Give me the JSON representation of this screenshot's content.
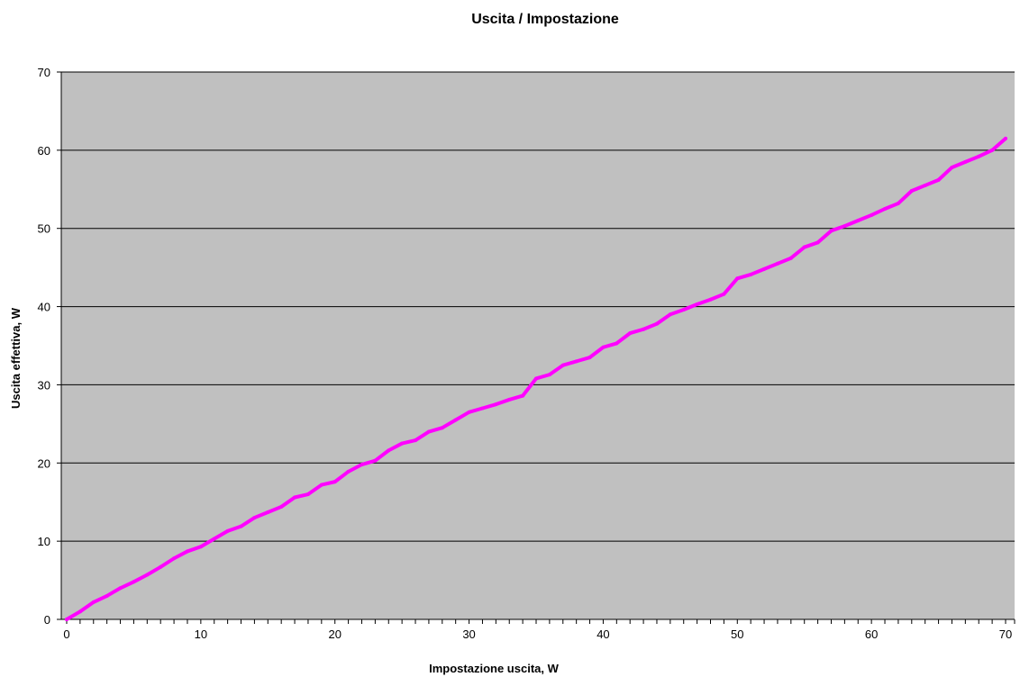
{
  "colors": {
    "plot_background": "#c0c0c0",
    "series_line": "#ff00ff",
    "gridline": "#000000",
    "axis": "#000000"
  },
  "chart_data": {
    "type": "line",
    "title": "Uscita / Impostazione",
    "xlabel": "Impostazione uscita, W",
    "ylabel": "Uscita effettiva, W",
    "xlim": [
      0,
      70
    ],
    "ylim": [
      0,
      70
    ],
    "x_ticks": [
      0,
      10,
      20,
      30,
      40,
      50,
      60,
      70
    ],
    "y_ticks": [
      0,
      10,
      20,
      30,
      40,
      50,
      60,
      70
    ],
    "grid": "horizontal",
    "legend": "none",
    "series": [
      {
        "x": [
          0,
          1,
          2,
          3,
          4,
          5,
          6,
          7,
          8,
          9,
          10,
          11,
          12,
          13,
          14,
          15,
          16,
          17,
          18,
          19,
          20,
          21,
          22,
          23,
          24,
          25,
          26,
          27,
          28,
          29,
          30,
          31,
          32,
          33,
          34,
          35,
          36,
          37,
          38,
          39,
          40,
          41,
          42,
          43,
          44,
          45,
          46,
          47,
          48,
          49,
          50,
          51,
          52,
          53,
          54,
          55,
          56,
          57,
          58,
          59,
          60,
          61,
          62,
          63,
          64,
          65,
          66,
          67,
          68,
          69,
          70
        ],
        "values": [
          0,
          1,
          2.2,
          3,
          4,
          4.8,
          5.7,
          6.7,
          7.8,
          8.7,
          9.3,
          10.3,
          11.3,
          11.9,
          13,
          13.7,
          14.4,
          15.6,
          16,
          17.2,
          17.6,
          18.9,
          19.8,
          20.3,
          21.6,
          22.5,
          22.9,
          24,
          24.5,
          25.5,
          26.5,
          27,
          27.5,
          28.1,
          28.6,
          30.8,
          31.3,
          32.5,
          33,
          33.5,
          34.8,
          35.3,
          36.6,
          37.1,
          37.8,
          39,
          39.6,
          40.3,
          40.9,
          41.6,
          43.6,
          44.1,
          44.8,
          45.5,
          46.2,
          47.6,
          48.2,
          49.7,
          50.3,
          51,
          51.7,
          52.5,
          53.2,
          54.8,
          55.5,
          56.2,
          57.8,
          58.5,
          59.2,
          60,
          61.5
        ]
      }
    ]
  }
}
